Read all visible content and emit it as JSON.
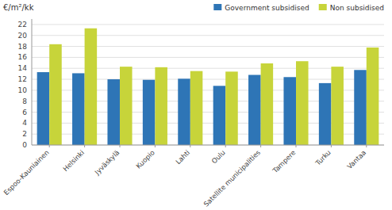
{
  "chart_data": {
    "type": "bar",
    "ylabel": "€/m²/kk",
    "categories": [
      "Espoo-Kauniainen",
      "Helsinki",
      "Jyväskylä",
      "Kuopio",
      "Lahti",
      "Oulu",
      "Satellite municipalities",
      "Tampere",
      "Turku",
      "Vantaa"
    ],
    "series": [
      {
        "name": "Government subsidised",
        "color": "#2e75b6",
        "values": [
          13.3,
          13.1,
          12.0,
          11.9,
          12.1,
          10.8,
          12.8,
          12.4,
          11.3,
          13.7
        ]
      },
      {
        "name": "Non subsidised",
        "color": "#c7d43a",
        "values": [
          18.4,
          21.3,
          14.3,
          14.2,
          13.5,
          13.4,
          14.9,
          15.3,
          14.3,
          17.8
        ]
      }
    ],
    "ylim": [
      0,
      23
    ],
    "yticks": [
      0,
      2,
      4,
      6,
      8,
      10,
      12,
      14,
      16,
      18,
      20,
      22
    ],
    "grid": true,
    "legend": "upper right"
  }
}
